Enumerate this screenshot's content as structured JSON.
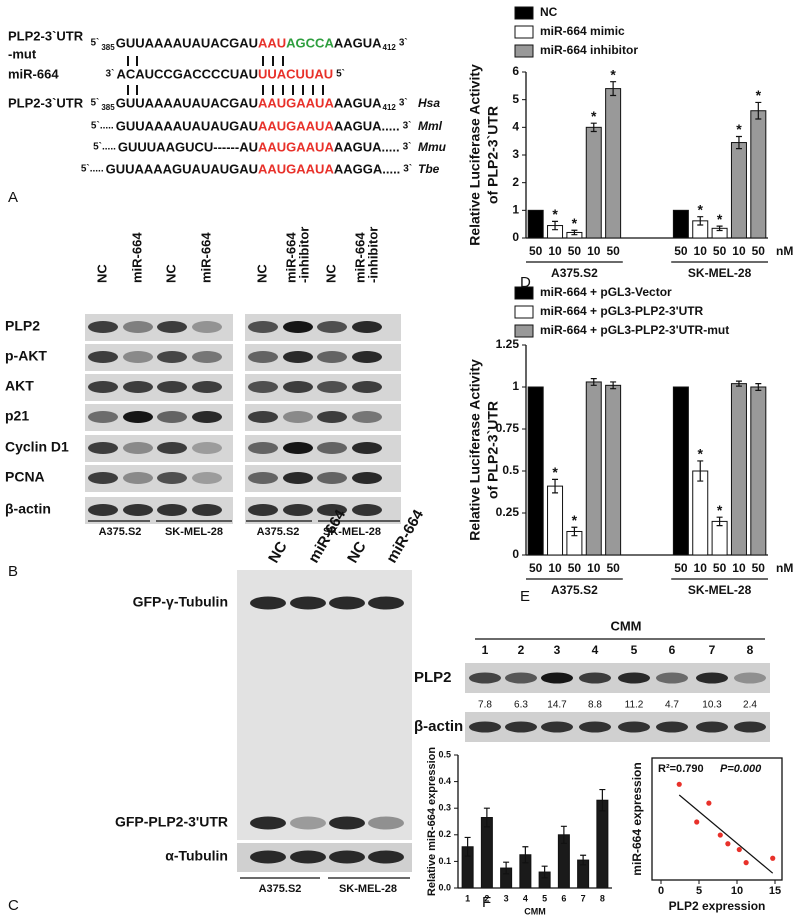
{
  "panel_labels": [
    "A",
    "B",
    "C",
    "D",
    "E",
    "F"
  ],
  "sequences": {
    "rows": [
      {
        "label": [
          "PLP2-3`UTR",
          "-mut"
        ],
        "left": "5`",
        "left_sub": "385",
        "prefix": "GUUAAAAUAUACGAU",
        "seed": [
          {
            "text": "AAU",
            "color": "#e8312a"
          },
          {
            "text": "AGCCA",
            "color": "#2e9e3e"
          }
        ],
        "suffix": "AAGUA",
        "right_sub": "412",
        "right": "3`"
      },
      {
        "label": [
          "miR-664"
        ],
        "left": "3`",
        "prefix": "ACAUCCGACCCCUAU",
        "seed": [
          {
            "text": "UUACUUAU",
            "color": "#e8312a"
          }
        ],
        "right": "5`"
      },
      {
        "label": [
          "PLP2-3`UTR"
        ],
        "left": "5`",
        "left_sub": "385",
        "prefix": "GUUAAAAUAUACGAU",
        "seed": [
          {
            "text": "AAUGAAUA",
            "color": "#e8312a"
          }
        ],
        "suffix": "AAGUA",
        "right_sub": "412",
        "right": "3`",
        "species": "Hsa"
      },
      {
        "left": "5`.....",
        "prefix": "GUUAAAAUAUAUGAU",
        "seed": [
          {
            "text": "AAUGAAUA",
            "color": "#e8312a"
          }
        ],
        "suffix": "AAGUA.....",
        "right": "3`",
        "species": "Mml"
      },
      {
        "left": "5`.....",
        "prefix": "GUUUAAGUCU------AU",
        "seed": [
          {
            "text": "AAUGAAUA",
            "color": "#e8312a"
          }
        ],
        "suffix": "AAGUA.....",
        "right": "3`",
        "species": "Mmu"
      },
      {
        "left": "5`.....",
        "prefix": "GUUAAAAGUAUAUGAU",
        "seed": [
          {
            "text": "AAUGAAUA",
            "color": "#e8312a"
          }
        ],
        "suffix": "AAGGA.....",
        "right": "3`",
        "species": "Tbe"
      }
    ]
  },
  "blot_b": {
    "columns": [
      [
        "NC"
      ],
      [
        "miR-664"
      ],
      [
        "NC"
      ],
      [
        "miR-664"
      ],
      [
        "NC"
      ],
      [
        "miR-664",
        "-inhibitor"
      ],
      [
        "NC"
      ],
      [
        "miR-664",
        "-inhibitor"
      ]
    ],
    "rows": [
      "PLP2",
      "p-AKT",
      "AKT",
      "p21",
      "Cyclin D1",
      "PCNA",
      "β-actin"
    ],
    "groups": [
      "A375.S2",
      "SK-MEL-28",
      "A375.S2",
      "SK-MEL-28"
    ]
  },
  "blot_c": {
    "columns": [
      "NC",
      "miR-664",
      "NC",
      "miR-664"
    ],
    "rows": [
      "GFP-γ-Tubulin",
      "GFP-PLP2-3'UTR",
      "α-Tubulin"
    ],
    "groups": [
      "A375.S2",
      "SK-MEL-28"
    ]
  },
  "blot_f": {
    "title": "CMM",
    "lanes": [
      1,
      2,
      3,
      4,
      5,
      6,
      7,
      8
    ],
    "rows": [
      "PLP2",
      "β-actin"
    ],
    "quantification": [
      7.8,
      6.3,
      14.7,
      8.8,
      11.2,
      4.7,
      10.3,
      2.4
    ]
  },
  "chart_data": [
    {
      "type": "bar",
      "ylabel": [
        "Relative Luciferase Activity",
        "of PLP2-3`UTR"
      ],
      "categories": [
        "50",
        "10",
        "50",
        "10",
        "50",
        "50",
        "10",
        "50",
        "10",
        "50"
      ],
      "groups": [
        "A375.S2",
        "SK-MEL-28"
      ],
      "unit_label": "nM",
      "ylim": [
        0,
        6
      ],
      "yticks": [
        0,
        1,
        2,
        3,
        4,
        5,
        6
      ],
      "series": [
        {
          "name": "NC",
          "color": "#000000",
          "values": [
            1,
            null,
            null,
            null,
            null,
            1,
            null,
            null,
            null,
            null
          ]
        },
        {
          "name": "miR-664 mimic",
          "color": "#ffffff",
          "values": [
            null,
            0.45,
            0.2,
            null,
            null,
            null,
            0.62,
            0.35,
            null,
            null
          ],
          "errors": [
            null,
            0.15,
            0.08,
            null,
            null,
            null,
            0.15,
            0.08,
            null,
            null
          ],
          "significance": [
            null,
            "*",
            "*",
            null,
            null,
            null,
            "*",
            "*",
            null,
            null
          ]
        },
        {
          "name": "miR-664 inhibitor",
          "color": "#999999",
          "values": [
            null,
            null,
            null,
            4.0,
            5.4,
            null,
            null,
            null,
            3.45,
            4.6
          ],
          "errors": [
            null,
            null,
            null,
            0.15,
            0.25,
            null,
            null,
            null,
            0.22,
            0.3
          ],
          "significance": [
            null,
            null,
            null,
            "*",
            "*",
            null,
            null,
            null,
            "*",
            "*"
          ]
        }
      ]
    },
    {
      "type": "bar",
      "ylabel": [
        "Relative Luciferase Activity",
        "of PLP2-3`UTR"
      ],
      "categories": [
        "50",
        "10",
        "50",
        "10",
        "50",
        "50",
        "10",
        "50",
        "10",
        "50"
      ],
      "groups": [
        "A375.S2",
        "SK-MEL-28"
      ],
      "unit_label": "nM",
      "ylim": [
        0,
        1.25
      ],
      "yticks": [
        0,
        0.25,
        0.5,
        0.75,
        1,
        1.25
      ],
      "series": [
        {
          "name": "miR-664 + pGL3-Vector",
          "color": "#000000",
          "values": [
            1,
            null,
            null,
            null,
            null,
            1,
            null,
            null,
            null,
            null
          ]
        },
        {
          "name": "miR-664 + pGL3-PLP2-3'UTR",
          "color": "#ffffff",
          "values": [
            null,
            0.41,
            0.14,
            null,
            null,
            null,
            0.5,
            0.2,
            null,
            null
          ],
          "errors": [
            null,
            0.04,
            0.025,
            null,
            null,
            null,
            0.06,
            0.025,
            null,
            null
          ],
          "significance": [
            null,
            "*",
            "*",
            null,
            null,
            null,
            "*",
            "*",
            null,
            null
          ]
        },
        {
          "name": "miR-664 + pGL3-PLP2-3'UTR-mut",
          "color": "#999999",
          "values": [
            null,
            null,
            null,
            1.03,
            1.01,
            null,
            null,
            null,
            1.02,
            1.0
          ],
          "errors": [
            null,
            null,
            null,
            0.02,
            0.02,
            null,
            null,
            null,
            0.015,
            0.02
          ]
        }
      ]
    },
    {
      "type": "bar",
      "ylabel": "Relative miR-664 expression",
      "xlabel": "CMM",
      "categories": [
        "1",
        "2",
        "3",
        "4",
        "5",
        "6",
        "7",
        "8"
      ],
      "values": [
        0.155,
        0.265,
        0.075,
        0.125,
        0.06,
        0.2,
        0.105,
        0.33
      ],
      "errors": [
        0.035,
        0.035,
        0.022,
        0.03,
        0.022,
        0.032,
        0.018,
        0.04
      ],
      "color": "#1a1a1a",
      "ylim": [
        0,
        0.5
      ],
      "yticks": [
        {
          "value": 0,
          "label": "0.0"
        },
        0.1,
        0.2,
        0.3,
        0.4,
        0.5
      ]
    },
    {
      "type": "scatter",
      "xlabel": "PLP2 expression",
      "ylabel": "miR-664 expression",
      "annotations": [
        "R²=0.790",
        "P=0.000"
      ],
      "x": [
        7.8,
        6.3,
        14.7,
        8.8,
        11.2,
        4.7,
        10.3,
        2.4
      ],
      "y": [
        0.155,
        0.265,
        0.075,
        0.125,
        0.06,
        0.2,
        0.105,
        0.33
      ],
      "color": "#e8312a",
      "fit_line": true,
      "xlim": [
        0,
        15
      ],
      "xticks": [
        0,
        5,
        10,
        15
      ],
      "ylim": [
        0,
        0.4
      ]
    }
  ]
}
